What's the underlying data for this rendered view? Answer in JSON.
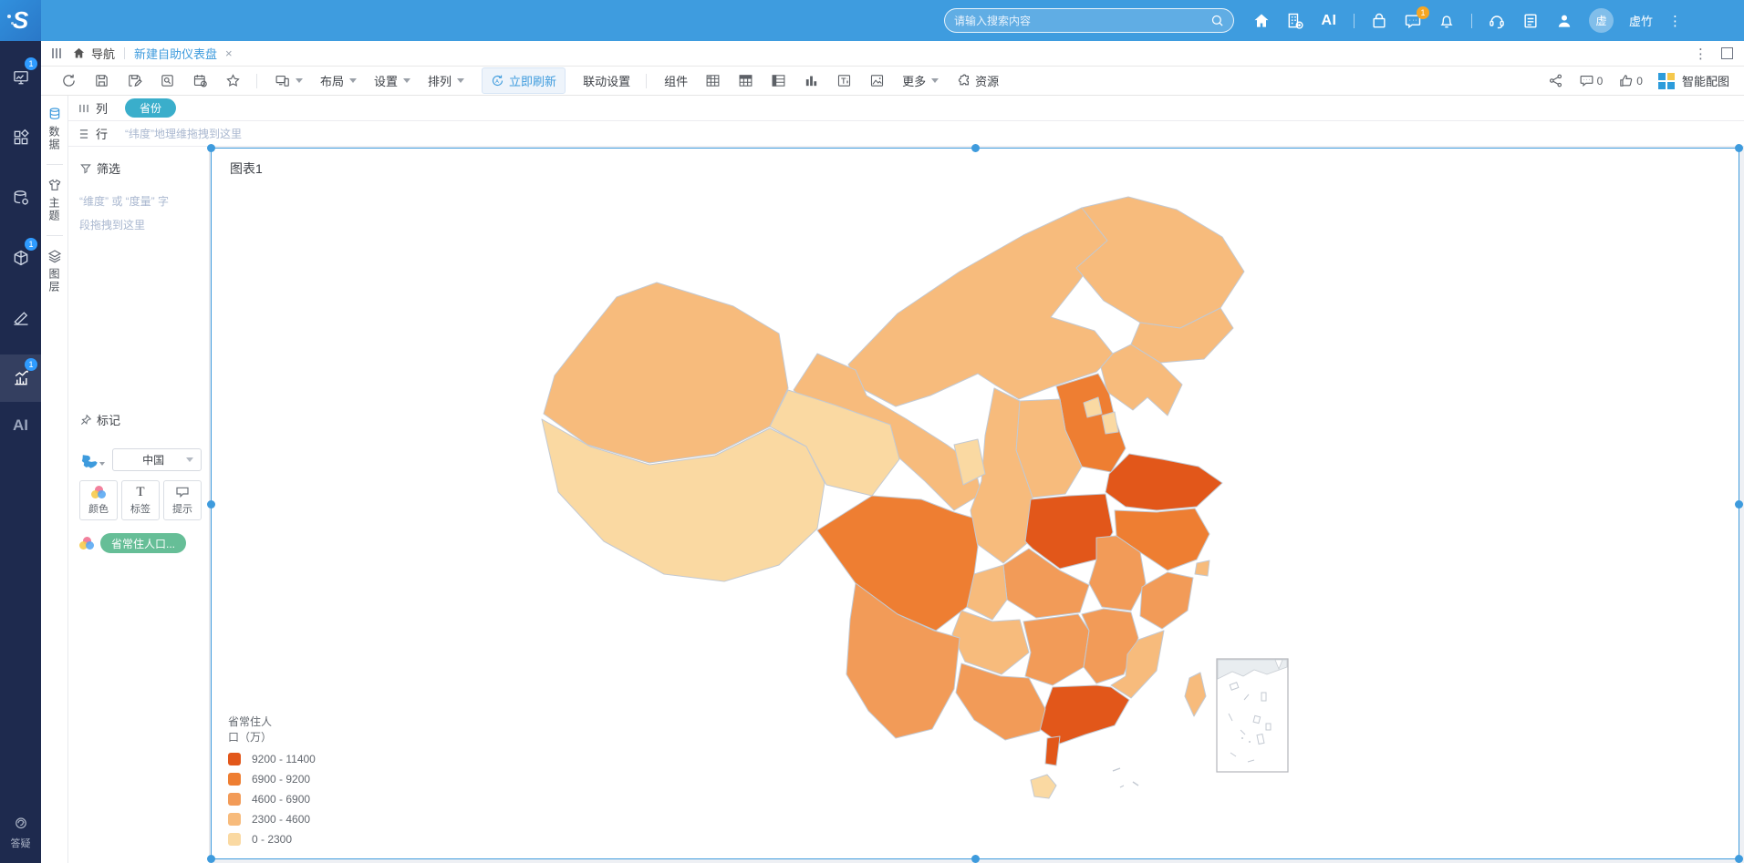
{
  "topbar": {
    "search": {
      "placeholder": "请输入搜索内容"
    },
    "user": {
      "name": "虚竹",
      "avatar_char": "虚"
    },
    "message_badge": "1"
  },
  "sidebar": {
    "badges": {
      "monitor": "1",
      "cube": "1",
      "analytics": "1"
    },
    "ai_label": "AI",
    "qa_label": "答疑"
  },
  "tabbar": {
    "nav_label": "导航",
    "tab_title": "新建自助仪表盘",
    "close_glyph": "×"
  },
  "toolbar": {
    "layout_label": "布局",
    "settings_label": "设置",
    "arrange_label": "排列",
    "refresh_now_label": "立即刷新",
    "linkage_label": "联动设置",
    "components_label": "组件",
    "more_label": "更多",
    "resources_label": "资源",
    "comment_count": "0",
    "like_count": "0",
    "smart_label": "智能配图"
  },
  "rail": {
    "data_label": "数据",
    "theme_label": "主题",
    "layer_label": "图层"
  },
  "shelves": {
    "columns_label": "列",
    "rows_label": "行",
    "columns_pill": "省份",
    "rows_hint": "“纬度”地理维拖拽到这里"
  },
  "panel": {
    "filter_label": "筛选",
    "filter_hint_line1": "“维度” 或 “度量” 字",
    "filter_hint_line2": "段拖拽到这里",
    "marks_label": "标记",
    "geo_value": "中国",
    "color_btn": "颜色",
    "label_btn": "标签",
    "tip_btn": "提示",
    "color_field": "省常住人口..."
  },
  "canvas": {
    "chart_title": "图表1"
  },
  "chart_data": {
    "type": "choropleth_map",
    "title": "省常住人口（万）",
    "geo": "中国",
    "legend": {
      "title_line1": "省常住人",
      "title_line2": "口（万）",
      "items": [
        {
          "label": "9200 - 11400",
          "color": "#E2571A"
        },
        {
          "label": "6900 - 9200",
          "color": "#EE7E32"
        },
        {
          "label": "4600 - 6900",
          "color": "#F29B58"
        },
        {
          "label": "2300 - 4600",
          "color": "#F7BB7C"
        },
        {
          "label": "0 - 2300",
          "color": "#FAD9A2"
        }
      ]
    },
    "palette": [
      "#FAD9A2",
      "#F7BB7C",
      "#F29B58",
      "#EE7E32",
      "#E2571A"
    ],
    "value_ranges": [
      [
        0,
        2300
      ],
      [
        2300,
        4600
      ],
      [
        4600,
        6900
      ],
      [
        6900,
        9200
      ],
      [
        9200,
        11400
      ]
    ],
    "regions": [
      {
        "name": "新疆",
        "bucket": 1
      },
      {
        "name": "西藏",
        "bucket": 0
      },
      {
        "name": "内蒙古",
        "bucket": 1
      },
      {
        "name": "甘肃",
        "bucket": 1
      },
      {
        "name": "青海",
        "bucket": 0
      },
      {
        "name": "黑龙江",
        "bucket": 1
      },
      {
        "name": "吉林",
        "bucket": 1
      },
      {
        "name": "辽宁",
        "bucket": 1
      },
      {
        "name": "河北",
        "bucket": 3
      },
      {
        "name": "山西",
        "bucket": 1
      },
      {
        "name": "陕西",
        "bucket": 1
      },
      {
        "name": "宁夏",
        "bucket": 0
      },
      {
        "name": "山东",
        "bucket": 4
      },
      {
        "name": "河南",
        "bucket": 4
      },
      {
        "name": "江苏",
        "bucket": 3
      },
      {
        "name": "安徽",
        "bucket": 2
      },
      {
        "name": "湖北",
        "bucket": 2
      },
      {
        "name": "重庆",
        "bucket": 1
      },
      {
        "name": "四川",
        "bucket": 3
      },
      {
        "name": "贵州",
        "bucket": 1
      },
      {
        "name": "云南",
        "bucket": 2
      },
      {
        "name": "湖南",
        "bucket": 2
      },
      {
        "name": "江西",
        "bucket": 2
      },
      {
        "name": "浙江",
        "bucket": 2
      },
      {
        "name": "上海",
        "bucket": 1
      },
      {
        "name": "福建",
        "bucket": 1
      },
      {
        "name": "广东",
        "bucket": 4
      },
      {
        "name": "广西",
        "bucket": 2
      },
      {
        "name": "海南",
        "bucket": 0
      },
      {
        "name": "台湾",
        "bucket": 1
      },
      {
        "name": "北京",
        "bucket": 0
      },
      {
        "name": "天津",
        "bucket": 0
      }
    ]
  }
}
